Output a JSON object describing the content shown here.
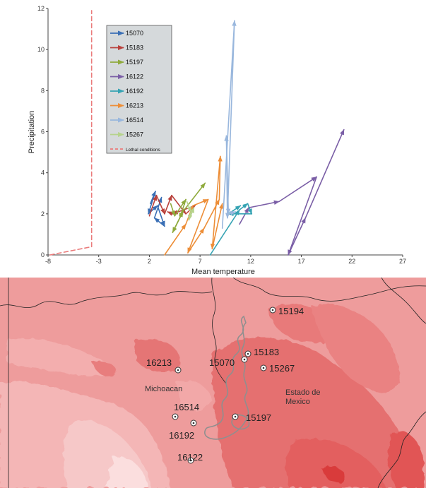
{
  "chart_data": {
    "type": "line",
    "title": "",
    "xlabel": "Mean temperature",
    "ylabel": "Precipitation",
    "xlim": [
      -8,
      27
    ],
    "ylim": [
      0,
      12
    ],
    "xticks": [
      -8,
      -3,
      2,
      7,
      12,
      17,
      22,
      27
    ],
    "yticks": [
      0,
      2,
      4,
      6,
      8,
      10,
      12
    ],
    "grid": false,
    "legend_position": "top-left",
    "series": [
      {
        "name": "15070",
        "color": "#3a6fb5",
        "arrows": true,
        "points": [
          [
            2.1,
            2.5
          ],
          [
            2.6,
            3.1
          ],
          [
            1.9,
            2.0
          ],
          [
            2.8,
            2.4
          ],
          [
            3.5,
            1.4
          ],
          [
            2.5,
            1.8
          ],
          [
            3.2,
            2.8
          ]
        ]
      },
      {
        "name": "15183",
        "color": "#b9413c",
        "arrows": true,
        "points": [
          [
            2.0,
            1.9
          ],
          [
            2.7,
            2.9
          ],
          [
            3.5,
            2.0
          ],
          [
            4.2,
            2.9
          ],
          [
            5.6,
            2.0
          ],
          [
            6.5,
            2.4
          ],
          [
            4.3,
            2.0
          ],
          [
            3.8,
            2.1
          ]
        ]
      },
      {
        "name": "15197",
        "color": "#8faa3c",
        "arrows": true,
        "points": [
          [
            4.1,
            2.5
          ],
          [
            4.5,
            1.9
          ],
          [
            5.6,
            2.7
          ],
          [
            5.0,
            1.8
          ],
          [
            4.3,
            1.1
          ],
          [
            5.3,
            2.1
          ],
          [
            7.5,
            3.5
          ]
        ]
      },
      {
        "name": "16122",
        "color": "#7a5ea6",
        "arrows": true,
        "points": [
          [
            10.9,
            1.5
          ],
          [
            11.8,
            2.3
          ],
          [
            14.8,
            2.6
          ],
          [
            18.5,
            3.8
          ],
          [
            15.7,
            0.0
          ],
          [
            17.4,
            1.8
          ],
          [
            21.2,
            6.1
          ]
        ]
      },
      {
        "name": "16192",
        "color": "#35a3b3",
        "arrows": true,
        "points": [
          [
            8.0,
            0.0
          ],
          [
            10.9,
            2.2
          ],
          [
            11.7,
            2.5
          ],
          [
            12.1,
            2.0
          ],
          [
            9.8,
            2.0
          ],
          [
            11.0,
            2.4
          ]
        ]
      },
      {
        "name": "16213",
        "color": "#ed8e38",
        "arrows": true,
        "points": [
          [
            3.5,
            0.0
          ],
          [
            5.6,
            1.5
          ],
          [
            6.3,
            2.4
          ],
          [
            7.8,
            2.7
          ],
          [
            5.8,
            0.1
          ],
          [
            7.4,
            1.3
          ],
          [
            8.9,
            2.7
          ],
          [
            9.0,
            4.8
          ],
          [
            8.2,
            0.3
          ],
          [
            9.2,
            2.5
          ]
        ]
      },
      {
        "name": "16514",
        "color": "#99b7dd",
        "arrows": true,
        "points": [
          [
            9.2,
            1.3
          ],
          [
            10.4,
            11.4
          ],
          [
            9.7,
            1.8
          ],
          [
            9.6,
            5.8
          ],
          [
            9.8,
            2.0
          ],
          [
            10.5,
            2.1
          ]
        ]
      },
      {
        "name": "15267",
        "color": "#b6d38c",
        "arrows": true,
        "points": [
          [
            5.7,
            2.6
          ],
          [
            6.1,
            2.1
          ],
          [
            5.9,
            1.7
          ],
          [
            6.4,
            2.3
          ]
        ]
      },
      {
        "name": "Lethal conditions",
        "color": "#ea7b7b",
        "dashed": true,
        "arrows": false,
        "points": [
          [
            -7.8,
            0.0
          ],
          [
            -3.7,
            0.4
          ],
          [
            -3.7,
            11.9
          ]
        ]
      }
    ]
  },
  "map": {
    "station_labels": [
      "15194",
      "15183",
      "15070",
      "15267",
      "16213",
      "16514",
      "15197",
      "16192",
      "16122"
    ],
    "region_labels": [
      "Michoacan",
      "Estado de Mexico"
    ]
  }
}
